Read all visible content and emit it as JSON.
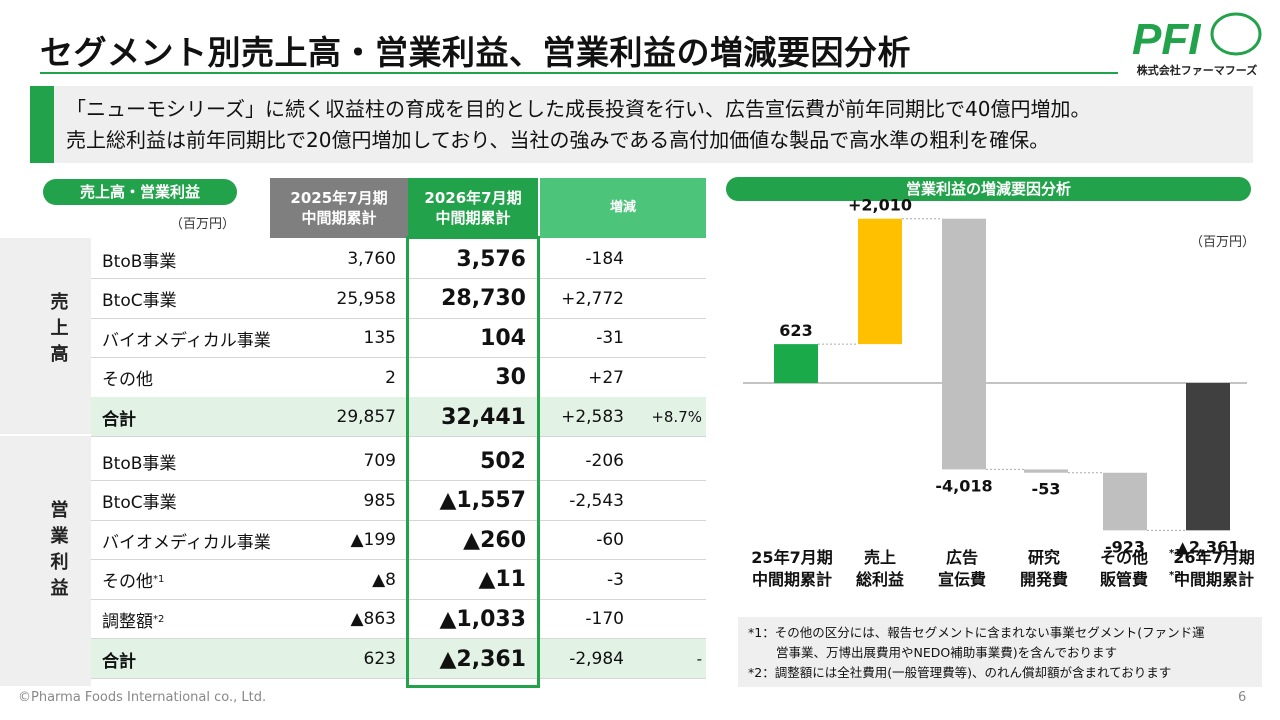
{
  "title": "セグメント別売上高・営業利益、営業利益の増減要因分析",
  "logo": {
    "mark": "PFI",
    "company": "株式会社ファーマフーズ",
    "color": "#22a24a"
  },
  "banner": {
    "line1": "「ニューモシリーズ」に続く収益柱の育成を目的とした成長投資を行い、広告宣伝費が前年同期比で40億円増加。",
    "line2": "売上総利益は前年同期比で20億円増加しており、当社の強みである高付加価値な製品で高水準の粗利を確保。"
  },
  "table": {
    "pill": "売上高・営業利益",
    "unit": "（百万円）",
    "col_prev": [
      "2025年7月期",
      "中間期累計"
    ],
    "col_cur": [
      "2026年7月期",
      "中間期累計"
    ],
    "col_diff": "増減",
    "group_sales": [
      "売",
      "上",
      "高"
    ],
    "group_profit": [
      "営",
      "業",
      "利",
      "益"
    ],
    "sales": [
      {
        "label": "BtoB事業",
        "sup": "",
        "prev": "3,760",
        "cur": "3,576",
        "diff": "-184",
        "pct": ""
      },
      {
        "label": "BtoC事業",
        "sup": "",
        "prev": "25,958",
        "cur": "28,730",
        "diff": "+2,772",
        "pct": ""
      },
      {
        "label": "バイオメディカル事業",
        "sup": "",
        "prev": "135",
        "cur": "104",
        "diff": "-31",
        "pct": ""
      },
      {
        "label": "その他",
        "sup": "",
        "prev": "2",
        "cur": "30",
        "diff": "+27",
        "pct": ""
      },
      {
        "label": "合計",
        "sup": "",
        "prev": "29,857",
        "cur": "32,441",
        "diff": "+2,583",
        "pct": "+8.7%"
      }
    ],
    "profit": [
      {
        "label": "BtoB事業",
        "sup": "",
        "prev": "709",
        "cur": "502",
        "diff": "-206",
        "pct": ""
      },
      {
        "label": "BtoC事業",
        "sup": "",
        "prev": "985",
        "cur": "▲1,557",
        "diff": "-2,543",
        "pct": ""
      },
      {
        "label": "バイオメディカル事業",
        "sup": "",
        "prev": "▲199",
        "cur": "▲260",
        "diff": "-60",
        "pct": ""
      },
      {
        "label": "その他",
        "sup": "*1",
        "prev": "▲8",
        "cur": "▲11",
        "diff": "-3",
        "pct": ""
      },
      {
        "label": "調整額",
        "sup": "*2",
        "prev": "▲863",
        "cur": "▲1,033",
        "diff": "-170",
        "pct": ""
      },
      {
        "label": "合計",
        "sup": "",
        "prev": "623",
        "cur": "▲2,361",
        "diff": "-2,984",
        "pct": "-"
      }
    ]
  },
  "chart_data": {
    "type": "bar",
    "subtype": "waterfall",
    "title": "営業利益の増減要因分析",
    "unit": "（百万円）",
    "categories": [
      [
        "25年7月期",
        "中間期累計"
      ],
      [
        "売上",
        "総利益"
      ],
      [
        "広告",
        "宣伝費"
      ],
      [
        "研究",
        "開発費"
      ],
      [
        "その他",
        "販管費"
      ],
      [
        "26年7月期",
        "中間期累計"
      ]
    ],
    "category_sups": [
      "",
      "",
      "",
      "",
      "*1 *2",
      ""
    ],
    "values": [
      623,
      2010,
      -4018,
      -53,
      -923,
      -2361
    ],
    "kinds": [
      "total",
      "delta",
      "delta",
      "delta",
      "delta",
      "total"
    ],
    "value_labels": [
      "623",
      "+2,010",
      "-4,018",
      "-53",
      "-923",
      "▲2,361"
    ],
    "colors": {
      "start": "#1aaa4a",
      "increase": "#ffc000",
      "decrease": "#bfbfbf",
      "end": "#404040"
    },
    "ylim": [
      -2750,
      2750
    ]
  },
  "notes": {
    "n1a": "*1：その他の区分には、報告セグメントに含まれない事業セグメント(ファンド運",
    "n1b": "営事業、万博出展費用やNEDO補助事業費)を含んでおります",
    "n2": "*2：調整額には全社費用(一般管理費等)、のれん償却額が含まれております"
  },
  "footer": {
    "copyright": "©Pharma Foods International co., Ltd.",
    "page": "6"
  }
}
